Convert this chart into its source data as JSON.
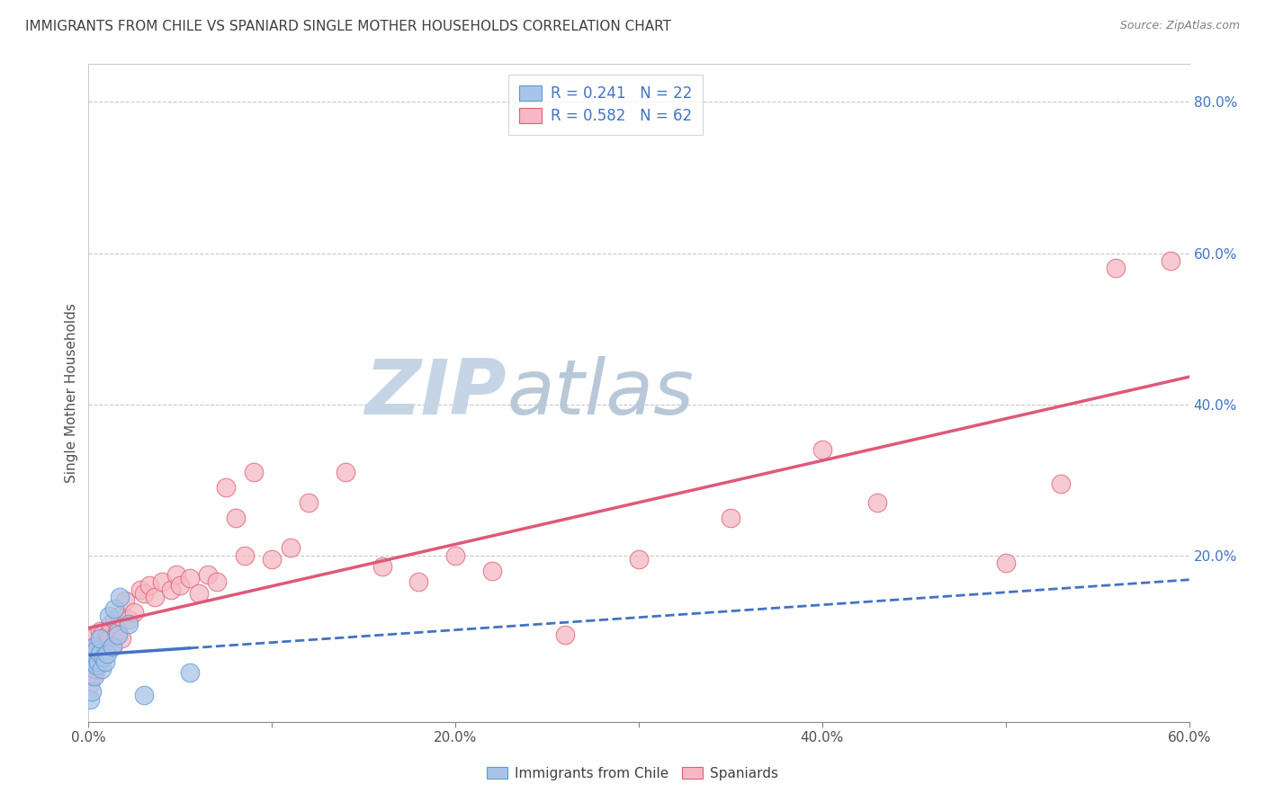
{
  "title": "IMMIGRANTS FROM CHILE VS SPANIARD SINGLE MOTHER HOUSEHOLDS CORRELATION CHART",
  "source": "Source: ZipAtlas.com",
  "ylabel": "Single Mother Households",
  "xlim": [
    0.0,
    0.6
  ],
  "ylim": [
    -0.02,
    0.85
  ],
  "xtick_labels": [
    "0.0%",
    "",
    "20.0%",
    "",
    "40.0%",
    "",
    "60.0%"
  ],
  "xtick_vals": [
    0.0,
    0.1,
    0.2,
    0.3,
    0.4,
    0.5,
    0.6
  ],
  "ytick_labels_right": [
    "80.0%",
    "60.0%",
    "40.0%",
    "20.0%"
  ],
  "ytick_vals_right": [
    0.8,
    0.6,
    0.4,
    0.2
  ],
  "legend_r_chile": "0.241",
  "legend_n_chile": "22",
  "legend_r_spain": "0.582",
  "legend_n_spain": "62",
  "color_chile_fill": "#a8c4e8",
  "color_spain_fill": "#f5b8c4",
  "color_chile_edge": "#5b9bd5",
  "color_spain_edge": "#e06070",
  "color_chile_line": "#4472c4",
  "color_spain_line": "#e05878",
  "color_title": "#404040",
  "color_source": "#808080",
  "color_legend_r": "#000000",
  "color_legend_val": "#4472c4",
  "color_grid": "#c8c8c8",
  "bg_color": "#ffffff",
  "watermark_zip_color": "#c8d8e8",
  "watermark_atlas_color": "#c0c8d8",
  "chile_x": [
    0.001,
    0.002,
    0.002,
    0.003,
    0.003,
    0.004,
    0.004,
    0.005,
    0.006,
    0.006,
    0.007,
    0.008,
    0.009,
    0.01,
    0.011,
    0.013,
    0.014,
    0.016,
    0.017,
    0.022,
    0.03,
    0.055
  ],
  "chile_y": [
    0.01,
    0.02,
    0.06,
    0.04,
    0.08,
    0.055,
    0.075,
    0.06,
    0.07,
    0.09,
    0.05,
    0.065,
    0.06,
    0.07,
    0.12,
    0.08,
    0.13,
    0.095,
    0.145,
    0.11,
    0.015,
    0.045
  ],
  "spain_x": [
    0.001,
    0.001,
    0.002,
    0.002,
    0.002,
    0.003,
    0.003,
    0.004,
    0.004,
    0.005,
    0.005,
    0.006,
    0.006,
    0.007,
    0.007,
    0.008,
    0.009,
    0.01,
    0.011,
    0.012,
    0.013,
    0.014,
    0.015,
    0.016,
    0.017,
    0.018,
    0.02,
    0.022,
    0.025,
    0.028,
    0.03,
    0.033,
    0.036,
    0.04,
    0.045,
    0.048,
    0.05,
    0.055,
    0.06,
    0.065,
    0.07,
    0.075,
    0.08,
    0.085,
    0.09,
    0.1,
    0.11,
    0.12,
    0.14,
    0.16,
    0.18,
    0.2,
    0.22,
    0.26,
    0.3,
    0.35,
    0.4,
    0.43,
    0.5,
    0.53,
    0.56,
    0.59
  ],
  "spain_y": [
    0.03,
    0.06,
    0.04,
    0.07,
    0.09,
    0.05,
    0.08,
    0.06,
    0.075,
    0.055,
    0.085,
    0.065,
    0.1,
    0.07,
    0.095,
    0.08,
    0.075,
    0.095,
    0.09,
    0.11,
    0.08,
    0.115,
    0.095,
    0.1,
    0.12,
    0.09,
    0.14,
    0.115,
    0.125,
    0.155,
    0.15,
    0.16,
    0.145,
    0.165,
    0.155,
    0.175,
    0.16,
    0.17,
    0.15,
    0.175,
    0.165,
    0.29,
    0.25,
    0.2,
    0.31,
    0.195,
    0.21,
    0.27,
    0.31,
    0.185,
    0.165,
    0.2,
    0.18,
    0.095,
    0.195,
    0.25,
    0.34,
    0.27,
    0.19,
    0.295,
    0.58,
    0.59
  ]
}
